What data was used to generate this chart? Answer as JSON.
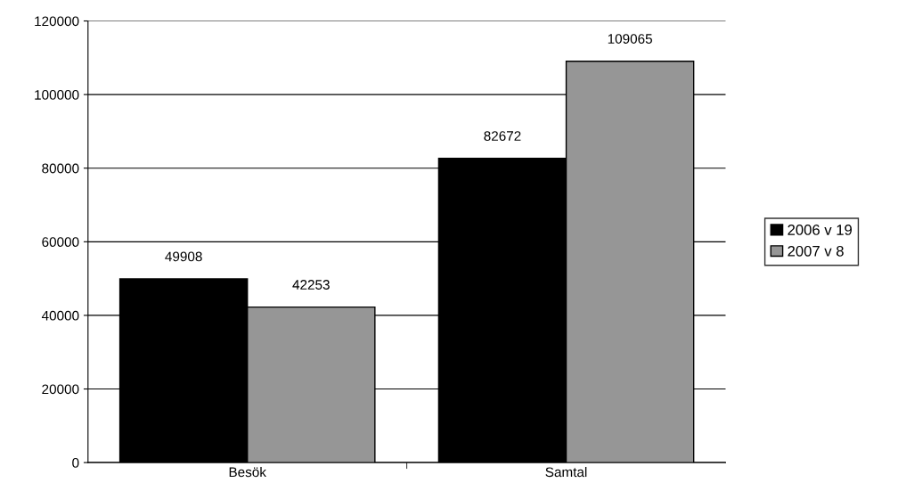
{
  "chart_data": {
    "type": "bar",
    "categories": [
      "Besök",
      "Samtal"
    ],
    "series": [
      {
        "name": "2006 v 19",
        "color": "#000000",
        "values": [
          49908,
          82672
        ]
      },
      {
        "name": "2007 v 8",
        "color": "#969696",
        "values": [
          42253,
          109065
        ]
      }
    ],
    "ylim": [
      0,
      120000
    ],
    "yticks": [
      0,
      20000,
      40000,
      60000,
      80000,
      100000,
      120000
    ],
    "grid": "y",
    "legend": "right",
    "data_labels": true
  }
}
